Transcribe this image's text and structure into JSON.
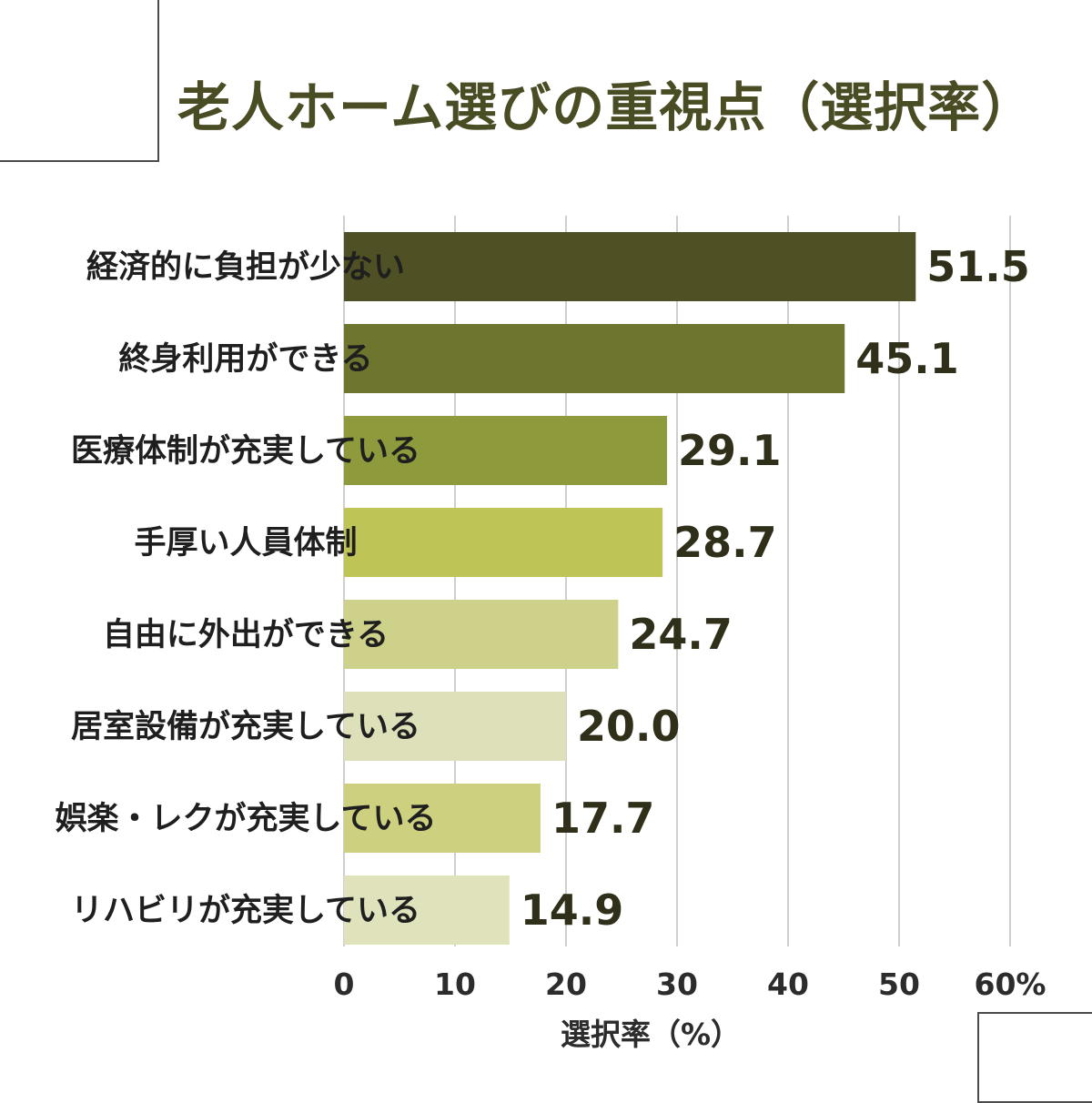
{
  "title": "老人ホーム選びの重視点（選択率）",
  "chart_data": {
    "type": "bar",
    "orientation": "horizontal",
    "categories": [
      "経済的に負担が少ない",
      "終身利用ができる",
      "医療体制が充実している",
      "手厚い人員体制",
      "自由に外出ができる",
      "居室設備が充実している",
      "娯楽・レクが充実している",
      "リハビリが充実している"
    ],
    "values": [
      51.5,
      45.1,
      29.1,
      28.7,
      24.7,
      20.0,
      17.7,
      14.9
    ],
    "value_labels": [
      "51.5",
      "45.1",
      "29.1",
      "28.7",
      "24.7",
      "20.0",
      "17.7",
      "14.9"
    ],
    "bar_colors": [
      "#4f5024",
      "#6e752e",
      "#8f9a3c",
      "#bec456",
      "#cdd189",
      "#dde0b8",
      "#cdd17f",
      "#e0e2bc"
    ],
    "xlim": [
      0,
      60
    ],
    "xticks": [
      0,
      10,
      20,
      30,
      40,
      50,
      60
    ],
    "xtick_labels": [
      "0",
      "10",
      "20",
      "30",
      "40",
      "50",
      "60%"
    ],
    "xlabel": "選択率（%）",
    "ylabel": "",
    "grid": "vertical"
  }
}
